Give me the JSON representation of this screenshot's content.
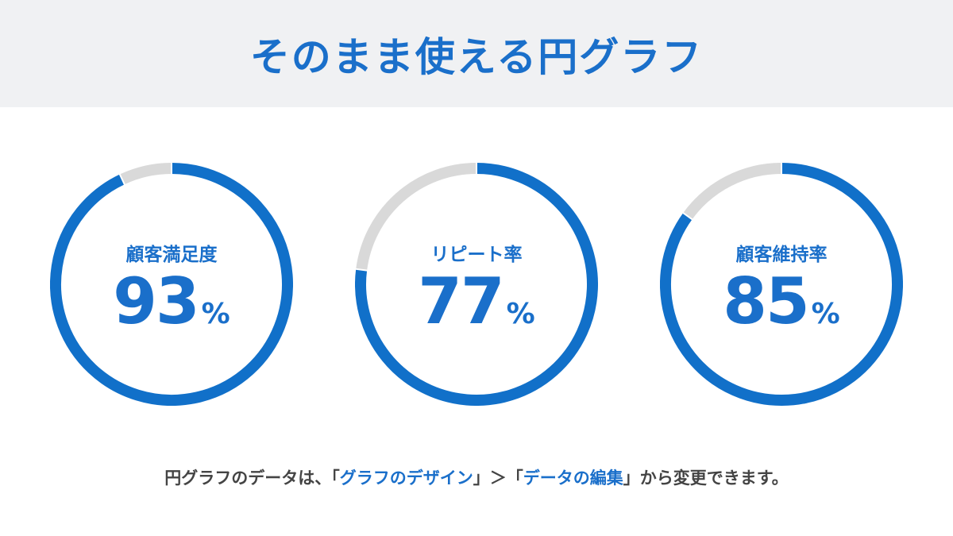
{
  "header": {
    "title": "そのまま使える円グラフ"
  },
  "colors": {
    "accent": "#1170c9",
    "remainder": "#d9d9d9",
    "header_bg": "#f0f1f3"
  },
  "chart_data": [
    {
      "type": "pie",
      "variant": "donut",
      "label": "顧客満足度",
      "value": 93,
      "unit": "%",
      "values": [
        93,
        7
      ]
    },
    {
      "type": "pie",
      "variant": "donut",
      "label": "リピート率",
      "value": 77,
      "unit": "%",
      "values": [
        77,
        23
      ]
    },
    {
      "type": "pie",
      "variant": "donut",
      "label": "顧客維持率",
      "value": 85,
      "unit": "%",
      "values": [
        85,
        15
      ]
    }
  ],
  "footer": {
    "prefix": "円グラフのデータは、「",
    "link1": "グラフのデザイン",
    "middle": "」＞「",
    "link2": "データの編集",
    "suffix": "」から変更できます。"
  }
}
